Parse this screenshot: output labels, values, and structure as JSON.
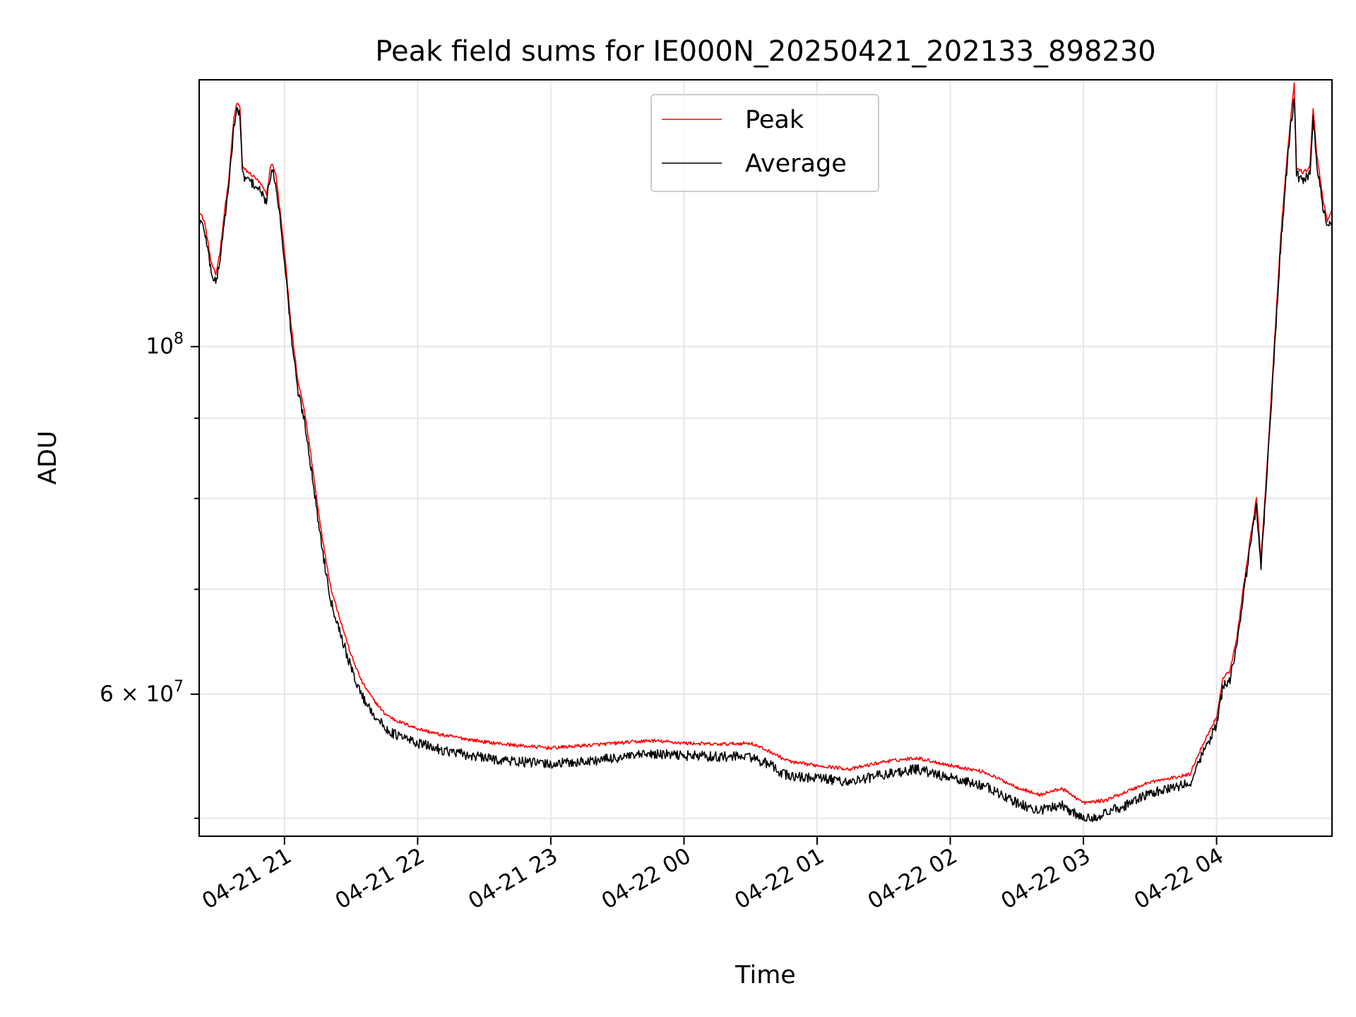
{
  "chart_data": {
    "type": "line",
    "title": "Peak field sums for IE000N_20250421_202133_898230",
    "xlabel": "Time",
    "ylabel": "ADU",
    "x_tick_labels": [
      "04-21 21",
      "04-21 22",
      "04-21 23",
      "04-22 00",
      "04-22 01",
      "04-22 02",
      "04-22 03",
      "04-22 04"
    ],
    "y_scale": "log",
    "y_major_ticks": [
      {
        "value": 100000000,
        "base": "10",
        "exp": "8"
      },
      {
        "value": 60000000,
        "base": "6 × 10",
        "exp": "7"
      }
    ],
    "y_minor_ticks": [
      50000000,
      70000000,
      80000000,
      90000000
    ],
    "xlim": [
      "2025-04-21 20:21:33",
      "2025-04-22 04:52:00"
    ],
    "ylim": [
      48700000,
      148000000
    ],
    "grid": true,
    "legend": {
      "position": "top-center"
    },
    "series": [
      {
        "name": "Peak",
        "color": "#ff0000",
        "points": [
          [
            "2025-04-21 20:21:33",
            122000000
          ],
          [
            "2025-04-21 20:24:00",
            120000000
          ],
          [
            "2025-04-21 20:27:00",
            113000000
          ],
          [
            "2025-04-21 20:29:00",
            111000000
          ],
          [
            "2025-04-21 20:31:00",
            115000000
          ],
          [
            "2025-04-21 20:33:00",
            122000000
          ],
          [
            "2025-04-21 20:35:00",
            128000000
          ],
          [
            "2025-04-21 20:37:00",
            139000000
          ],
          [
            "2025-04-21 20:38:30",
            143000000
          ],
          [
            "2025-04-21 20:40:00",
            142000000
          ],
          [
            "2025-04-21 20:41:00",
            130000000
          ],
          [
            "2025-04-21 20:44:00",
            129000000
          ],
          [
            "2025-04-21 20:47:00",
            128000000
          ],
          [
            "2025-04-21 20:49:00",
            127000000
          ],
          [
            "2025-04-21 20:52:00",
            125000000
          ],
          [
            "2025-04-21 20:54:00",
            131000000
          ],
          [
            "2025-04-21 20:56:00",
            129000000
          ],
          [
            "2025-04-21 20:58:00",
            122000000
          ],
          [
            "2025-04-21 21:00:00",
            115000000
          ],
          [
            "2025-04-21 21:03:00",
            103000000
          ],
          [
            "2025-04-21 21:06:00",
            95000000
          ],
          [
            "2025-04-21 21:09:00",
            91000000
          ],
          [
            "2025-04-21 21:12:00",
            85000000
          ],
          [
            "2025-04-21 21:15:00",
            79000000
          ],
          [
            "2025-04-21 21:18:00",
            74000000
          ],
          [
            "2025-04-21 21:21:00",
            70000000
          ],
          [
            "2025-04-21 21:25:00",
            67000000
          ],
          [
            "2025-04-21 21:30:00",
            63500000
          ],
          [
            "2025-04-21 21:35:00",
            61000000
          ],
          [
            "2025-04-21 21:40:00",
            59500000
          ],
          [
            "2025-04-21 21:45:00",
            58300000
          ],
          [
            "2025-04-21 21:50:00",
            57700000
          ],
          [
            "2025-04-21 22:00:00",
            57000000
          ],
          [
            "2025-04-21 22:10:00",
            56500000
          ],
          [
            "2025-04-21 22:20:00",
            56200000
          ],
          [
            "2025-04-21 22:30:00",
            55900000
          ],
          [
            "2025-04-21 22:45:00",
            55600000
          ],
          [
            "2025-04-21 23:00:00",
            55400000
          ],
          [
            "2025-04-21 23:15:00",
            55600000
          ],
          [
            "2025-04-21 23:30:00",
            55800000
          ],
          [
            "2025-04-21 23:45:00",
            56000000
          ],
          [
            "2025-04-22 00:00:00",
            55800000
          ],
          [
            "2025-04-22 00:15:00",
            55700000
          ],
          [
            "2025-04-22 00:30:00",
            55800000
          ],
          [
            "2025-04-22 00:40:00",
            55000000
          ],
          [
            "2025-04-22 00:45:00",
            54500000
          ],
          [
            "2025-04-22 00:50:00",
            54200000
          ],
          [
            "2025-04-22 01:00:00",
            54000000
          ],
          [
            "2025-04-22 01:15:00",
            53700000
          ],
          [
            "2025-04-22 01:30:00",
            54300000
          ],
          [
            "2025-04-22 01:45:00",
            54600000
          ],
          [
            "2025-04-22 02:00:00",
            54000000
          ],
          [
            "2025-04-22 02:15:00",
            53500000
          ],
          [
            "2025-04-22 02:30:00",
            52300000
          ],
          [
            "2025-04-22 02:40:00",
            51700000
          ],
          [
            "2025-04-22 02:50:00",
            52200000
          ],
          [
            "2025-04-22 02:55:00",
            51700000
          ],
          [
            "2025-04-22 03:00:00",
            51100000
          ],
          [
            "2025-04-22 03:10:00",
            51300000
          ],
          [
            "2025-04-22 03:20:00",
            52000000
          ],
          [
            "2025-04-22 03:30:00",
            52700000
          ],
          [
            "2025-04-22 03:40:00",
            53000000
          ],
          [
            "2025-04-22 03:48:00",
            53300000
          ],
          [
            "2025-04-22 03:52:00",
            55000000
          ],
          [
            "2025-04-22 03:56:00",
            56500000
          ],
          [
            "2025-04-22 04:00:00",
            58000000
          ],
          [
            "2025-04-22 04:03:00",
            61500000
          ],
          [
            "2025-04-22 04:06:00",
            62000000
          ],
          [
            "2025-04-22 04:09:00",
            65000000
          ],
          [
            "2025-04-22 04:12:00",
            70000000
          ],
          [
            "2025-04-22 04:15:00",
            75000000
          ],
          [
            "2025-04-22 04:18:00",
            80000000
          ],
          [
            "2025-04-22 04:20:00",
            73000000
          ],
          [
            "2025-04-22 04:23:00",
            85000000
          ],
          [
            "2025-04-22 04:26:00",
            100000000
          ],
          [
            "2025-04-22 04:29:00",
            118000000
          ],
          [
            "2025-04-22 04:31:00",
            128000000
          ],
          [
            "2025-04-22 04:33:00",
            138000000
          ],
          [
            "2025-04-22 04:35:00",
            147000000
          ],
          [
            "2025-04-22 04:36:00",
            130000000
          ],
          [
            "2025-04-22 04:39:00",
            129000000
          ],
          [
            "2025-04-22 04:42:00",
            130000000
          ],
          [
            "2025-04-22 04:43:30",
            142000000
          ],
          [
            "2025-04-22 04:45:00",
            133000000
          ],
          [
            "2025-04-22 04:48:00",
            124000000
          ],
          [
            "2025-04-22 04:50:00",
            120000000
          ],
          [
            "2025-04-22 04:52:00",
            122000000
          ]
        ]
      },
      {
        "name": "Average",
        "color": "#000000",
        "points": [
          [
            "2025-04-21 20:21:33",
            121000000
          ],
          [
            "2025-04-21 20:24:00",
            119000000
          ],
          [
            "2025-04-21 20:27:00",
            112000000
          ],
          [
            "2025-04-21 20:29:00",
            110000000
          ],
          [
            "2025-04-21 20:31:00",
            114000000
          ],
          [
            "2025-04-21 20:33:00",
            121000000
          ],
          [
            "2025-04-21 20:35:00",
            127000000
          ],
          [
            "2025-04-21 20:37:00",
            138000000
          ],
          [
            "2025-04-21 20:38:30",
            142000000
          ],
          [
            "2025-04-21 20:40:00",
            141000000
          ],
          [
            "2025-04-21 20:41:00",
            129000000
          ],
          [
            "2025-04-21 20:44:00",
            128000000
          ],
          [
            "2025-04-21 20:47:00",
            127000000
          ],
          [
            "2025-04-21 20:49:00",
            126000000
          ],
          [
            "2025-04-21 20:52:00",
            124000000
          ],
          [
            "2025-04-21 20:54:00",
            130000000
          ],
          [
            "2025-04-21 20:56:00",
            128000000
          ],
          [
            "2025-04-21 20:58:00",
            121000000
          ],
          [
            "2025-04-21 21:00:00",
            114000000
          ],
          [
            "2025-04-21 21:03:00",
            102000000
          ],
          [
            "2025-04-21 21:06:00",
            94000000
          ],
          [
            "2025-04-21 21:09:00",
            90000000
          ],
          [
            "2025-04-21 21:12:00",
            84000000
          ],
          [
            "2025-04-21 21:15:00",
            78000000
          ],
          [
            "2025-04-21 21:18:00",
            73000000
          ],
          [
            "2025-04-21 21:21:00",
            69000000
          ],
          [
            "2025-04-21 21:25:00",
            66000000
          ],
          [
            "2025-04-21 21:30:00",
            62500000
          ],
          [
            "2025-04-21 21:35:00",
            60000000
          ],
          [
            "2025-04-21 21:40:00",
            58500000
          ],
          [
            "2025-04-21 21:45:00",
            57300000
          ],
          [
            "2025-04-21 21:50:00",
            56700000
          ],
          [
            "2025-04-21 22:00:00",
            56000000
          ],
          [
            "2025-04-21 22:10:00",
            55500000
          ],
          [
            "2025-04-21 22:20:00",
            55100000
          ],
          [
            "2025-04-21 22:30:00",
            54800000
          ],
          [
            "2025-04-21 22:45:00",
            54500000
          ],
          [
            "2025-04-21 23:00:00",
            54300000
          ],
          [
            "2025-04-21 23:15:00",
            54500000
          ],
          [
            "2025-04-21 23:30:00",
            54800000
          ],
          [
            "2025-04-21 23:45:00",
            55100000
          ],
          [
            "2025-04-22 00:00:00",
            55000000
          ],
          [
            "2025-04-22 00:15:00",
            54900000
          ],
          [
            "2025-04-22 00:30:00",
            54900000
          ],
          [
            "2025-04-22 00:40:00",
            54100000
          ],
          [
            "2025-04-22 00:45:00",
            53500000
          ],
          [
            "2025-04-22 00:50:00",
            53300000
          ],
          [
            "2025-04-22 01:00:00",
            53200000
          ],
          [
            "2025-04-22 01:15:00",
            52900000
          ],
          [
            "2025-04-22 01:30:00",
            53500000
          ],
          [
            "2025-04-22 01:45:00",
            53900000
          ],
          [
            "2025-04-22 02:00:00",
            53200000
          ],
          [
            "2025-04-22 02:15:00",
            52600000
          ],
          [
            "2025-04-22 02:30:00",
            51300000
          ],
          [
            "2025-04-22 02:40:00",
            50700000
          ],
          [
            "2025-04-22 02:50:00",
            51200000
          ],
          [
            "2025-04-22 02:55:00",
            50600000
          ],
          [
            "2025-04-22 03:00:00",
            50100000
          ],
          [
            "2025-04-22 03:10:00",
            50500000
          ],
          [
            "2025-04-22 03:20:00",
            51200000
          ],
          [
            "2025-04-22 03:30:00",
            52000000
          ],
          [
            "2025-04-22 03:40:00",
            52400000
          ],
          [
            "2025-04-22 03:48:00",
            52800000
          ],
          [
            "2025-04-22 03:52:00",
            54500000
          ],
          [
            "2025-04-22 03:56:00",
            56000000
          ],
          [
            "2025-04-22 04:00:00",
            57500000
          ],
          [
            "2025-04-22 04:03:00",
            61000000
          ],
          [
            "2025-04-22 04:06:00",
            61500000
          ],
          [
            "2025-04-22 04:09:00",
            64500000
          ],
          [
            "2025-04-22 04:12:00",
            69500000
          ],
          [
            "2025-04-22 04:15:00",
            74500000
          ],
          [
            "2025-04-22 04:18:00",
            79500000
          ],
          [
            "2025-04-22 04:20:00",
            72500000
          ],
          [
            "2025-04-22 04:23:00",
            84500000
          ],
          [
            "2025-04-22 04:26:00",
            99000000
          ],
          [
            "2025-04-22 04:29:00",
            117000000
          ],
          [
            "2025-04-22 04:31:00",
            127000000
          ],
          [
            "2025-04-22 04:33:00",
            137000000
          ],
          [
            "2025-04-22 04:35:00",
            145000000
          ],
          [
            "2025-04-22 04:36:00",
            129000000
          ],
          [
            "2025-04-22 04:39:00",
            128000000
          ],
          [
            "2025-04-22 04:42:00",
            129000000
          ],
          [
            "2025-04-22 04:43:30",
            141000000
          ],
          [
            "2025-04-22 04:45:00",
            132000000
          ],
          [
            "2025-04-22 04:48:00",
            123000000
          ],
          [
            "2025-04-22 04:50:00",
            119000000
          ],
          [
            "2025-04-22 04:52:00",
            121000000
          ]
        ]
      }
    ]
  }
}
